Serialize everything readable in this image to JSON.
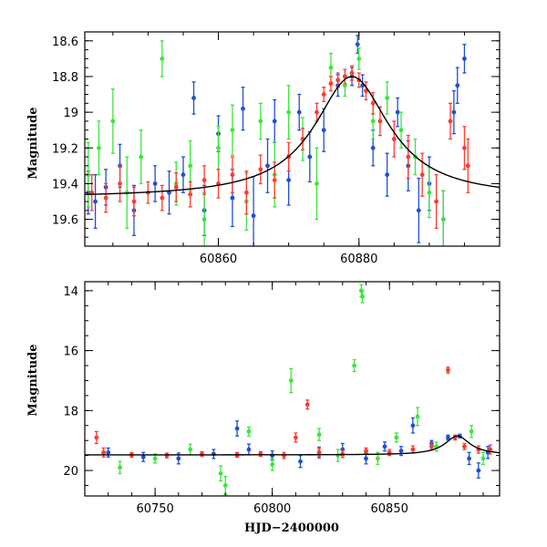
{
  "chart_data": [
    {
      "type": "scatter",
      "title": "",
      "xlabel": "",
      "ylabel": "Magnitude",
      "xlim": [
        60841,
        60900
      ],
      "ylim": [
        19.75,
        18.55
      ],
      "y_inverted": true,
      "x_ticks": [
        60860,
        60880
      ],
      "y_ticks": [
        18.6,
        18.8,
        19,
        19.2,
        19.4,
        19.6
      ],
      "y_tick_labels": [
        "18.6",
        "18.8",
        "19",
        "19.2",
        "19.4",
        "19.6"
      ],
      "model_curve": {
        "color": "#000000",
        "base_mag": 19.48,
        "peak_mag": 18.8,
        "t0": 60879,
        "tE": 6.5
      },
      "series": [
        {
          "color": "#1f4fd6",
          "points": [
            [
              60841.5,
              19.45,
              0.12
            ],
            [
              60842.5,
              19.5,
              0.15
            ],
            [
              60844,
              19.42,
              0.1
            ],
            [
              60846,
              19.3,
              0.12
            ],
            [
              60848,
              19.55,
              0.14
            ],
            [
              60851,
              19.4,
              0.1
            ],
            [
              60853,
              19.45,
              0.12
            ],
            [
              60855,
              19.35,
              0.1
            ],
            [
              60856.5,
              18.92,
              0.09
            ],
            [
              60858,
              19.55,
              0.14
            ],
            [
              60860,
              19.12,
              0.1
            ],
            [
              60862,
              19.48,
              0.16
            ],
            [
              60863.5,
              18.98,
              0.12
            ],
            [
              60865,
              19.58,
              0.22
            ],
            [
              60867,
              19.3,
              0.15
            ],
            [
              60868,
              19.05,
              0.12
            ],
            [
              60870,
              19.38,
              0.14
            ],
            [
              60871.5,
              19.0,
              0.1
            ],
            [
              60873,
              19.25,
              0.14
            ],
            [
              60875,
              19.1,
              0.12
            ],
            [
              60877,
              18.85,
              0.06
            ],
            [
              60879,
              18.8,
              0.05
            ],
            [
              60879.8,
              18.62,
              0.05
            ],
            [
              60880.5,
              18.85,
              0.06
            ],
            [
              60882,
              19.2,
              0.1
            ],
            [
              60884,
              19.35,
              0.12
            ],
            [
              60885.5,
              19.0,
              0.08
            ],
            [
              60887,
              19.3,
              0.14
            ],
            [
              60888.5,
              19.55,
              0.18
            ],
            [
              60890,
              19.4,
              0.15
            ],
            [
              60892,
              19.6,
              0.16
            ],
            [
              60893.5,
              19.0,
              0.12
            ],
            [
              60894,
              18.85,
              0.1
            ],
            [
              60895,
              18.7,
              0.08
            ]
          ]
        },
        {
          "color": "#3ce63c",
          "points": [
            [
              60841.5,
              19.35,
              0.18
            ],
            [
              60843,
              19.2,
              0.15
            ],
            [
              60845,
              19.05,
              0.18
            ],
            [
              60847,
              19.45,
              0.2
            ],
            [
              60849,
              19.25,
              0.15
            ],
            [
              60852,
              18.7,
              0.1
            ],
            [
              60854,
              19.4,
              0.12
            ],
            [
              60856,
              19.3,
              0.14
            ],
            [
              60858,
              19.6,
              0.15
            ],
            [
              60860,
              19.2,
              0.12
            ],
            [
              60862,
              19.1,
              0.14
            ],
            [
              60864,
              19.5,
              0.16
            ],
            [
              60866,
              19.05,
              0.1
            ],
            [
              60868,
              19.35,
              0.18
            ],
            [
              60870,
              19.0,
              0.15
            ],
            [
              60872,
              19.15,
              0.12
            ],
            [
              60874,
              19.4,
              0.2
            ],
            [
              60876,
              18.75,
              0.08
            ],
            [
              60878,
              18.85,
              0.06
            ],
            [
              60880,
              18.7,
              0.06
            ],
            [
              60882,
              19.05,
              0.1
            ],
            [
              60884,
              18.92,
              0.09
            ],
            [
              60886,
              19.1,
              0.1
            ],
            [
              60888,
              19.25,
              0.1
            ],
            [
              60890,
              19.45,
              0.14
            ],
            [
              60892,
              19.6,
              0.16
            ]
          ]
        },
        {
          "color": "#ff3b30",
          "points": [
            [
              60842,
              19.45,
              0.1
            ],
            [
              60844,
              19.48,
              0.08
            ],
            [
              60846,
              19.4,
              0.1
            ],
            [
              60848,
              19.5,
              0.08
            ],
            [
              60850,
              19.45,
              0.06
            ],
            [
              60852,
              19.48,
              0.07
            ],
            [
              60854,
              19.42,
              0.08
            ],
            [
              60856,
              19.46,
              0.07
            ],
            [
              60858,
              19.38,
              0.08
            ],
            [
              60860,
              19.4,
              0.08
            ],
            [
              60862,
              19.35,
              0.1
            ],
            [
              60864,
              19.45,
              0.12
            ],
            [
              60866,
              19.32,
              0.08
            ],
            [
              60868,
              19.38,
              0.1
            ],
            [
              60870,
              19.25,
              0.08
            ],
            [
              60872,
              19.15,
              0.06
            ],
            [
              60874,
              19.0,
              0.05
            ],
            [
              60875,
              18.9,
              0.04
            ],
            [
              60876,
              18.84,
              0.04
            ],
            [
              60877,
              18.82,
              0.04
            ],
            [
              60878,
              18.8,
              0.04
            ],
            [
              60879,
              18.78,
              0.04
            ],
            [
              60880,
              18.82,
              0.04
            ],
            [
              60881,
              18.88,
              0.05
            ],
            [
              60882,
              18.95,
              0.06
            ],
            [
              60883,
              19.05,
              0.08
            ],
            [
              60885,
              19.15,
              0.1
            ],
            [
              60887,
              19.25,
              0.12
            ],
            [
              60889,
              19.35,
              0.12
            ],
            [
              60891,
              19.5,
              0.15
            ],
            [
              60893,
              19.05,
              0.1
            ],
            [
              60895,
              19.2,
              0.12
            ],
            [
              60895.5,
              19.3,
              0.15
            ]
          ]
        }
      ]
    },
    {
      "type": "scatter",
      "title": "",
      "xlabel": "HJD−2400000",
      "ylabel": "Magnitude",
      "xlim": [
        60720,
        60897
      ],
      "ylim": [
        20.85,
        13.7
      ],
      "y_inverted": true,
      "x_ticks": [
        60750,
        60800,
        60850
      ],
      "y_ticks": [
        14,
        16,
        18,
        20
      ],
      "model_baseline": {
        "color": "#000000",
        "mag": 19.48,
        "bump": {
          "t0": 60879,
          "peak_mag": 18.85,
          "tE": 6.5
        }
      },
      "series": [
        {
          "color": "#1f4fd6",
          "points": [
            [
              60730,
              19.4,
              0.15
            ],
            [
              60745,
              19.55,
              0.15
            ],
            [
              60760,
              19.6,
              0.18
            ],
            [
              60775,
              19.45,
              0.15
            ],
            [
              60785,
              18.6,
              0.25
            ],
            [
              60790,
              19.3,
              0.18
            ],
            [
              60800,
              19.5,
              0.15
            ],
            [
              60812,
              19.7,
              0.2
            ],
            [
              60820,
              19.4,
              0.18
            ],
            [
              60830,
              19.3,
              0.2
            ],
            [
              60840,
              19.6,
              0.18
            ],
            [
              60848,
              19.2,
              0.15
            ],
            [
              60855,
              19.35,
              0.15
            ],
            [
              60860,
              18.5,
              0.25
            ],
            [
              60868,
              19.1,
              0.1
            ],
            [
              60875,
              18.9,
              0.08
            ],
            [
              60880,
              18.85,
              0.06
            ],
            [
              60884,
              19.6,
              0.2
            ],
            [
              60888,
              20.0,
              0.25
            ],
            [
              60892,
              19.4,
              0.2
            ]
          ]
        },
        {
          "color": "#3ce63c",
          "points": [
            [
              60735,
              19.9,
              0.2
            ],
            [
              60750,
              19.6,
              0.15
            ],
            [
              60765,
              19.3,
              0.18
            ],
            [
              60778,
              20.1,
              0.25
            ],
            [
              60780,
              20.5,
              0.3
            ],
            [
              60790,
              18.7,
              0.15
            ],
            [
              60800,
              19.8,
              0.2
            ],
            [
              60808,
              17.0,
              0.4
            ],
            [
              60820,
              18.8,
              0.2
            ],
            [
              60828,
              19.5,
              0.2
            ],
            [
              60835,
              16.5,
              0.2
            ],
            [
              60838,
              14.0,
              0.2
            ],
            [
              60838.5,
              14.2,
              0.2
            ],
            [
              60845,
              19.6,
              0.2
            ],
            [
              60853,
              18.9,
              0.15
            ],
            [
              60862,
              18.2,
              0.3
            ],
            [
              60870,
              19.2,
              0.15
            ],
            [
              60885,
              18.7,
              0.2
            ],
            [
              60890,
              19.6,
              0.2
            ]
          ]
        },
        {
          "color": "#ff3b30",
          "points": [
            [
              60725,
              18.9,
              0.2
            ],
            [
              60728,
              19.4,
              0.15
            ],
            [
              60740,
              19.48,
              0.08
            ],
            [
              60755,
              19.5,
              0.08
            ],
            [
              60770,
              19.45,
              0.08
            ],
            [
              60785,
              19.48,
              0.08
            ],
            [
              60795,
              19.45,
              0.08
            ],
            [
              60805,
              19.5,
              0.1
            ],
            [
              60810,
              18.9,
              0.15
            ],
            [
              60815,
              17.8,
              0.15
            ],
            [
              60820,
              19.4,
              0.12
            ],
            [
              60830,
              19.45,
              0.12
            ],
            [
              60840,
              19.35,
              0.1
            ],
            [
              60850,
              19.4,
              0.1
            ],
            [
              60860,
              19.3,
              0.12
            ],
            [
              60868,
              19.2,
              0.1
            ],
            [
              60875,
              16.65,
              0.1
            ],
            [
              60878,
              18.9,
              0.08
            ],
            [
              60882,
              19.2,
              0.1
            ],
            [
              60888,
              19.3,
              0.12
            ],
            [
              60893,
              19.3,
              0.15
            ]
          ]
        }
      ]
    }
  ]
}
